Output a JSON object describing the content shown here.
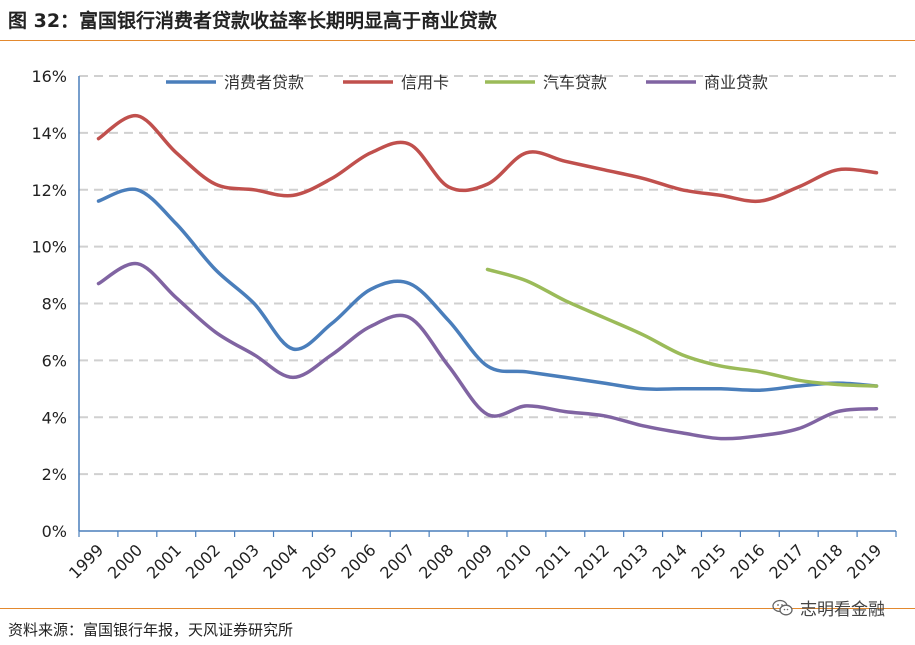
{
  "header": {
    "title": "图 32：富国银行消费者贷款收益率长期明显高于商业贷款"
  },
  "footer": {
    "source": "资料来源：富国银行年报，天风证券研究所",
    "watermark": "志明看金融"
  },
  "icons": {
    "watermark_icon": "wechat-icon"
  },
  "chart_data": {
    "type": "line",
    "title": "",
    "xlabel": "",
    "ylabel": "",
    "categories": [
      "1999",
      "2000",
      "2001",
      "2002",
      "2003",
      "2004",
      "2005",
      "2006",
      "2007",
      "2008",
      "2009",
      "2010",
      "2011",
      "2012",
      "2013",
      "2014",
      "2015",
      "2016",
      "2017",
      "2018",
      "2019"
    ],
    "ylim": [
      0,
      16
    ],
    "yticks": [
      "0%",
      "2%",
      "4%",
      "6%",
      "8%",
      "10%",
      "12%",
      "14%",
      "16%"
    ],
    "grid": true,
    "legend_position": "top",
    "series": [
      {
        "name": "消费者贷款",
        "color": "#4a7ebb",
        "values": [
          11.6,
          12.0,
          10.8,
          9.2,
          8.0,
          6.4,
          7.3,
          8.5,
          8.7,
          7.4,
          5.8,
          5.6,
          5.4,
          5.2,
          5.0,
          5.0,
          5.0,
          4.95,
          5.1,
          5.2,
          5.1
        ]
      },
      {
        "name": "信用卡",
        "color": "#c0504d",
        "values": [
          13.8,
          14.6,
          13.3,
          12.2,
          12.0,
          11.8,
          12.4,
          13.3,
          13.6,
          12.1,
          12.2,
          13.3,
          13.0,
          12.7,
          12.4,
          12.0,
          11.8,
          11.6,
          12.1,
          12.7,
          12.6
        ]
      },
      {
        "name": "汽车贷款",
        "color": "#9bbb59",
        "values": [
          null,
          null,
          null,
          null,
          null,
          null,
          null,
          null,
          null,
          null,
          9.2,
          8.8,
          8.1,
          7.5,
          6.9,
          6.2,
          5.8,
          5.6,
          5.3,
          5.15,
          5.1
        ]
      },
      {
        "name": "商业贷款",
        "color": "#8064a2",
        "values": [
          8.7,
          9.4,
          8.2,
          7.0,
          6.2,
          5.4,
          6.2,
          7.2,
          7.5,
          5.8,
          4.1,
          4.4,
          4.2,
          4.05,
          3.7,
          3.45,
          3.25,
          3.35,
          3.6,
          4.2,
          4.3
        ]
      }
    ]
  }
}
